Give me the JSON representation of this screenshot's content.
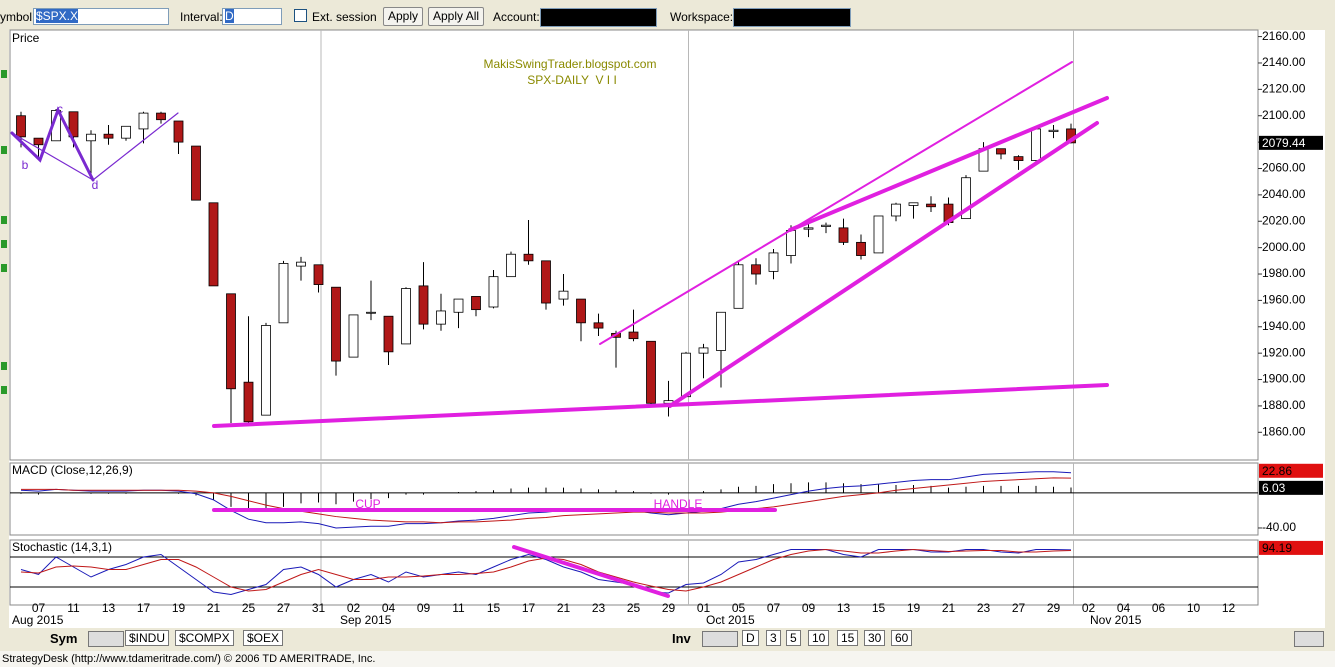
{
  "toolbar": {
    "symbol_label": "ymbol:",
    "symbol": "$SPX.X",
    "interval_label": "Interval:",
    "interval": "D",
    "ext_session": "Ext. session",
    "apply": "Apply",
    "apply_all": "Apply All",
    "account_label": "Account:",
    "workspace_label": "Workspace:"
  },
  "tabs": {
    "sym": "Sym",
    "symbols": [
      "$INDU",
      "$COMPX",
      "$OEX"
    ],
    "inv": "Inv",
    "intervals": [
      "D",
      "3",
      "5",
      "10",
      "15",
      "30",
      "60"
    ]
  },
  "status": "StrategyDesk (http://www.tdameritrade.com/) © 2006 TD AMERITRADE, Inc.",
  "chart_data": [
    {
      "type": "candlestick",
      "title": "MakisSwingTrader.blogspot.com",
      "subtitle": "SPX-DAILY  V I I",
      "panel_label": "Price",
      "categories": [
        null,
        "07",
        null,
        "11",
        null,
        "13",
        null,
        "17",
        null,
        "19",
        null,
        "21",
        null,
        "25",
        null,
        "27",
        null,
        "31",
        null,
        "02",
        null,
        "04",
        null,
        "09",
        null,
        "11",
        null,
        "15",
        null,
        "17",
        null,
        "21",
        null,
        "23",
        null,
        "25",
        null,
        "29",
        null,
        "01",
        null,
        "05",
        null,
        "07",
        null,
        "09",
        null,
        "13",
        null,
        "15",
        null,
        "19",
        null,
        "21",
        null,
        "23",
        null,
        "27",
        null,
        "29",
        null,
        "02",
        null,
        "04",
        null,
        "06",
        null,
        "10",
        null,
        "12"
      ],
      "month_labels": [
        "Aug 2015",
        "Sep 2015",
        "Oct 2015",
        "Nov 2015"
      ],
      "open": [
        2100,
        2083,
        2081,
        2103,
        2081,
        2086,
        2083,
        2090,
        2102,
        2096,
        2077,
        2034,
        1965,
        1898,
        1873,
        1943,
        1986,
        1987,
        1970,
        1917,
        1951,
        1948,
        1927,
        1971,
        1942,
        1951,
        1963,
        1955,
        1978,
        1995,
        1990,
        1961,
        1961,
        1943,
        1935,
        1936,
        1929,
        1882,
        1887,
        1920,
        1922,
        1954,
        1987,
        1982,
        1994,
        2014,
        2016,
        2015,
        2004,
        1996,
        2024,
        2032,
        2033,
        2033,
        2022,
        2058,
        2075,
        2069,
        2066,
        2088,
        2090,
        null,
        null,
        null,
        null,
        null,
        null,
        null,
        null,
        null
      ],
      "high": [
        2103,
        2083,
        2105,
        2103,
        2089,
        2093,
        2092,
        2103,
        2103,
        2096,
        2077,
        2034,
        1965,
        1948,
        1943,
        1990,
        1993,
        1987,
        1970,
        1949,
        1975,
        1948,
        1970,
        1989,
        1965,
        1961,
        1963,
        1983,
        1997,
        2021,
        1990,
        1980,
        1961,
        1950,
        1937,
        1953,
        1929,
        1899,
        1921,
        1927,
        1951,
        1989,
        1992,
        1999,
        2017,
        2020,
        2019,
        2022,
        2010,
        2024,
        2034,
        2034,
        2039,
        2038,
        2055,
        2080,
        2075,
        2070,
        2090,
        2093,
        2094,
        null,
        null,
        null,
        null,
        null,
        null,
        null,
        null,
        null
      ],
      "low": [
        2076,
        2068,
        2081,
        2076,
        2052,
        2078,
        2081,
        2079,
        2094,
        2071,
        2036,
        1971,
        1867,
        1867,
        1873,
        1943,
        1975,
        1966,
        1903,
        1917,
        1945,
        1911,
        1927,
        1938,
        1937,
        1939,
        1948,
        1954,
        1978,
        1987,
        1953,
        1956,
        1929,
        1933,
        1909,
        1929,
        1879,
        1872,
        1887,
        1901,
        1894,
        1954,
        1972,
        1976,
        1988,
        2008,
        2011,
        2002,
        1991,
        1996,
        2020,
        2022,
        2027,
        2017,
        2022,
        2058,
        2067,
        2059,
        2063,
        2083,
        2079,
        null,
        null,
        null,
        null,
        null,
        null,
        null,
        null,
        null
      ],
      "close": [
        2084,
        2078,
        2104,
        2084,
        2086,
        2083,
        2092,
        2102,
        2097,
        2080,
        2036,
        1971,
        1893,
        1868,
        1941,
        1988,
        1989,
        1972,
        1914,
        1949,
        1951,
        1921,
        1969,
        1942,
        1952,
        1961,
        1953,
        1978,
        1995,
        1990,
        1958,
        1967,
        1943,
        1939,
        1932,
        1931,
        1882,
        1884,
        1920,
        1924,
        1951,
        1987,
        1980,
        1996,
        2013,
        2015,
        2017,
        2004,
        1994,
        2024,
        2033,
        2034,
        2031,
        2019,
        2053,
        2075,
        2071,
        2066,
        2090,
        2089,
        2079.44,
        null,
        null,
        null,
        null,
        null,
        null,
        null,
        null,
        null
      ],
      "up_color": "#ffffff",
      "down_color": "#b01818",
      "ylim": [
        1839,
        2165
      ],
      "yticks": [
        {
          "value": 1860,
          "label": "1860.00"
        },
        {
          "value": 1880,
          "label": "1880.00"
        },
        {
          "value": 1900,
          "label": "1900.00"
        },
        {
          "value": 1920,
          "label": "1920.00"
        },
        {
          "value": 1940,
          "label": "1940.00"
        },
        {
          "value": 1960,
          "label": "1960.00"
        },
        {
          "value": 1980,
          "label": "1980.00"
        },
        {
          "value": 2000,
          "label": "2000.00"
        },
        {
          "value": 2020,
          "label": "2020.00"
        },
        {
          "value": 2040,
          "label": "2040.00"
        },
        {
          "value": 2060,
          "label": "2060.00"
        },
        {
          "value": 2080,
          "label": "2080.00"
        },
        {
          "value": 2100,
          "label": "2100.00"
        },
        {
          "value": 2120,
          "label": "2120.00"
        },
        {
          "value": 2140,
          "label": "2140.00"
        },
        {
          "value": 2160,
          "label": "2160.00"
        }
      ],
      "annotations": [
        "b",
        "c",
        "d"
      ]
    },
    {
      "type": "line",
      "panel_label": "MACD (Close,12,26,9)",
      "series": [
        {
          "color": "#1a1ab8",
          "values": [
            3,
            2,
            4,
            3,
            2,
            2,
            2,
            3,
            3,
            2,
            -1,
            -8,
            -20,
            -30,
            -34,
            -34,
            -33,
            -35,
            -40,
            -39,
            -38,
            -38,
            -35,
            -35,
            -34,
            -32,
            -31,
            -29,
            -26,
            -23,
            -22,
            -20,
            -20,
            -20,
            -20,
            -20,
            -23,
            -25,
            -23,
            -21,
            -18,
            -13,
            -10,
            -6,
            -2,
            2,
            5,
            7,
            8,
            10,
            12,
            14,
            15,
            15,
            18,
            21,
            22,
            23,
            24,
            24,
            22.86,
            null,
            null,
            null,
            null,
            null,
            null,
            null,
            null,
            null
          ]
        },
        {
          "color": "#c01818",
          "values": [
            4,
            4,
            4,
            3,
            3,
            3,
            3,
            3,
            3,
            3,
            2,
            0,
            -4,
            -9,
            -14,
            -18,
            -21,
            -24,
            -27,
            -29,
            -31,
            -32,
            -33,
            -33,
            -34,
            -33,
            -33,
            -32,
            -31,
            -29,
            -28,
            -26,
            -25,
            -24,
            -23,
            -22,
            -22,
            -23,
            -23,
            -23,
            -22,
            -20,
            -18,
            -16,
            -13,
            -10,
            -7,
            -4,
            -2,
            0,
            3,
            5,
            7,
            9,
            11,
            13,
            14,
            15,
            16,
            17,
            16.83,
            null,
            null,
            null,
            null,
            null,
            null,
            null,
            null,
            null
          ]
        }
      ],
      "histogram": {
        "color": "#000000",
        "values": [
          -1,
          -2,
          0,
          0,
          -1,
          -1,
          -1,
          0,
          0,
          -1,
          -3,
          -8,
          -16,
          -21,
          -20,
          -16,
          -12,
          -11,
          -13,
          -10,
          -7,
          -6,
          -2,
          -2,
          0,
          1,
          2,
          3,
          5,
          6,
          6,
          6,
          5,
          4,
          3,
          2,
          -1,
          -2,
          0,
          2,
          4,
          7,
          8,
          10,
          11,
          12,
          12,
          11,
          10,
          10,
          9,
          9,
          8,
          6,
          7,
          8,
          8,
          8,
          8,
          7,
          6.03,
          null,
          null,
          null,
          null,
          null,
          null,
          null,
          null,
          null
        ]
      },
      "ylim": [
        -48,
        34
      ],
      "yticks": [
        {
          "value": -40,
          "label": "-40.00"
        }
      ],
      "annotations": [
        "CUP",
        "HANDLE"
      ]
    },
    {
      "type": "line",
      "panel_label": "Stochastic (14,3,1)",
      "series": [
        {
          "color": "#1a1ab8",
          "values": [
            55,
            45,
            80,
            60,
            40,
            55,
            65,
            80,
            85,
            60,
            35,
            10,
            5,
            15,
            25,
            55,
            60,
            45,
            20,
            35,
            45,
            30,
            50,
            40,
            45,
            50,
            45,
            60,
            75,
            85,
            75,
            60,
            50,
            35,
            30,
            25,
            10,
            8,
            25,
            28,
            45,
            70,
            75,
            85,
            95,
            95,
            95,
            85,
            80,
            95,
            95,
            95,
            90,
            90,
            95,
            95,
            90,
            88,
            95,
            95,
            94.19,
            null,
            null,
            null,
            null,
            null,
            null,
            null,
            null,
            null
          ]
        },
        {
          "color": "#c01818",
          "values": [
            50,
            48,
            60,
            62,
            60,
            55,
            55,
            65,
            75,
            75,
            60,
            40,
            20,
            12,
            15,
            30,
            45,
            55,
            45,
            35,
            35,
            40,
            40,
            42,
            45,
            45,
            47,
            50,
            60,
            72,
            78,
            75,
            65,
            50,
            40,
            30,
            22,
            15,
            12,
            20,
            30,
            45,
            60,
            75,
            85,
            92,
            95,
            92,
            88,
            88,
            92,
            95,
            93,
            91,
            92,
            93,
            93,
            90,
            90,
            92,
            93,
            null,
            null,
            null,
            null,
            null,
            null,
            null,
            null,
            null
          ]
        }
      ],
      "levels": [
        20,
        80
      ],
      "ylim": [
        -16,
        114
      ]
    }
  ]
}
